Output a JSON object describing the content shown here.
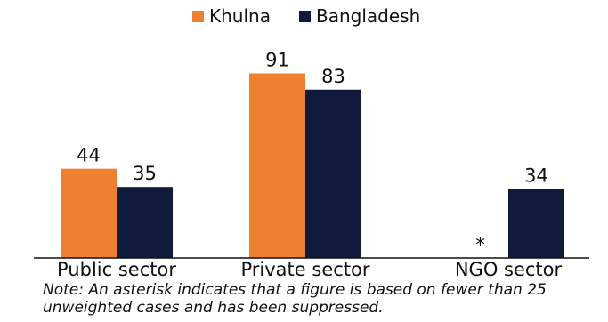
{
  "chart_data": {
    "type": "bar",
    "title": "",
    "xlabel": "",
    "ylabel": "",
    "categories": [
      "Public sector",
      "Private sector",
      "NGO sector"
    ],
    "series": [
      {
        "name": "Khulna",
        "color": "#ee8130",
        "values": [
          44,
          91,
          null
        ],
        "value_labels": [
          "44",
          "91",
          "*"
        ]
      },
      {
        "name": "Bangladesh",
        "color": "#0f1a3d",
        "values": [
          35,
          83,
          34
        ],
        "value_labels": [
          "35",
          "83",
          "34"
        ]
      }
    ],
    "ylim": [
      0,
      100
    ],
    "grid": false,
    "legend": "top-center"
  },
  "note": "Note: An asterisk indicates that a figure is based on fewer than 25 unweighted cases and has been suppressed."
}
